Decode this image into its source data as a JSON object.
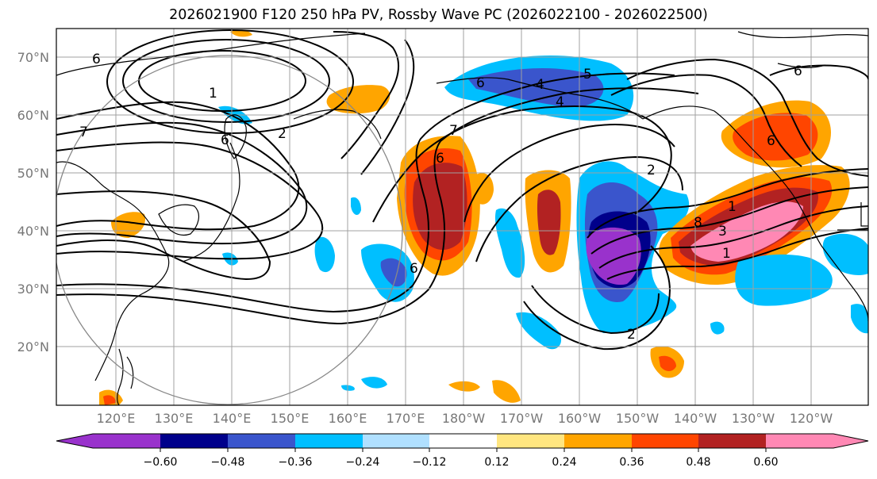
{
  "title": "2026021900 F120 250 hPa PV, Rossby Wave PC (2026022100 - 2026022500)",
  "map": {
    "lat_labels": [
      "70°N",
      "60°N",
      "50°N",
      "40°N",
      "30°N",
      "20°N"
    ],
    "lon_labels": [
      "120°E",
      "130°E",
      "140°E",
      "150°E",
      "160°E",
      "170°E",
      "180°W",
      "170°W",
      "160°W",
      "150°W",
      "140°W",
      "130°W",
      "120°W"
    ],
    "contour_labels": [
      "6",
      "1",
      "7",
      "2",
      "6",
      "7",
      "5",
      "4",
      "6",
      "4",
      "2",
      "6",
      "6",
      "8",
      "3",
      "1",
      "6",
      "1",
      "2",
      "6"
    ]
  },
  "colorbar": {
    "ticks": [
      "−0.60",
      "−0.48",
      "−0.36",
      "−0.24",
      "−0.12",
      "0.12",
      "0.24",
      "0.36",
      "0.48",
      "0.60"
    ],
    "colors": [
      "#9932cc",
      "#00008b",
      "#3a55cc",
      "#00bfff",
      "#b0e0ff",
      "#ffffff",
      "#ffe680",
      "#ffa500",
      "#ff4500",
      "#b22222",
      "#ff88b4"
    ]
  }
}
